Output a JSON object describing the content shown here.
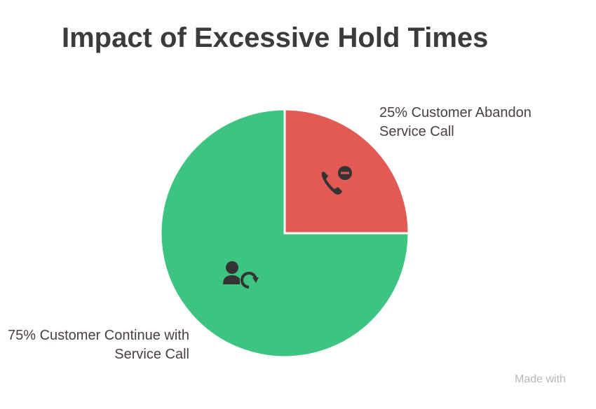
{
  "chart_data": {
    "type": "pie",
    "title": "Impact of Excessive Hold Times",
    "categories": [
      "Customer Abandon Service Call",
      "Customer Continue with Service Call"
    ],
    "values": [
      25,
      75
    ],
    "value_labels": [
      "25%",
      "75%"
    ],
    "colors": [
      "#e35a55",
      "#3dc480"
    ],
    "watermark": "Made with"
  }
}
